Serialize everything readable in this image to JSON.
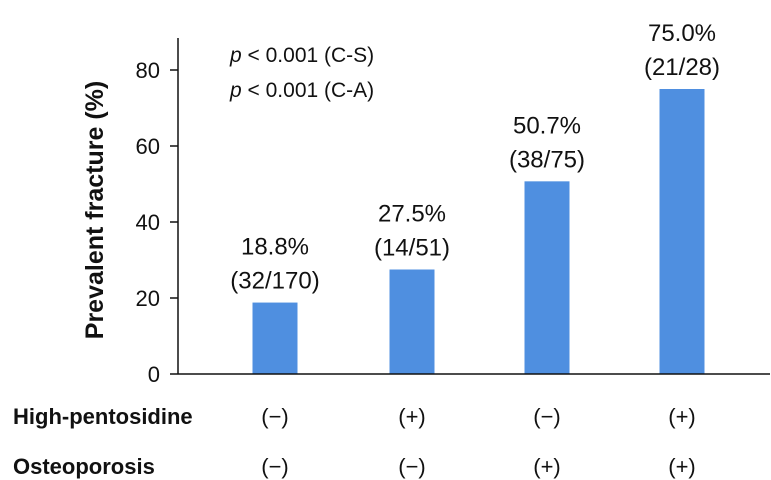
{
  "chart_data": {
    "type": "bar",
    "ylabel": "Prevalent fracture (%)",
    "ylim": [
      0,
      80
    ],
    "yticks": [
      0,
      20,
      40,
      60,
      80
    ],
    "bar_color": "#4f8fe0",
    "values": [
      18.8,
      27.5,
      50.7,
      75.0
    ],
    "data_labels": [
      {
        "pct": "18.8%",
        "frac": "(32/170)"
      },
      {
        "pct": "27.5%",
        "frac": "(14/51)"
      },
      {
        "pct": "50.7%",
        "frac": "(38/75)"
      },
      {
        "pct": "75.0%",
        "frac": "(21/28)"
      }
    ],
    "annotations": [
      {
        "p": "p",
        "text": " < 0.001 (C-S)"
      },
      {
        "p": "p",
        "text": " < 0.001 (C-A)"
      }
    ],
    "group_rows": [
      {
        "title": "High-pentosidine",
        "values": [
          "(−)",
          "(+)",
          "(−)",
          "(+)"
        ]
      },
      {
        "title": "Osteoporosis",
        "values": [
          "(−)",
          "(−)",
          "(+)",
          "(+)"
        ]
      }
    ]
  }
}
